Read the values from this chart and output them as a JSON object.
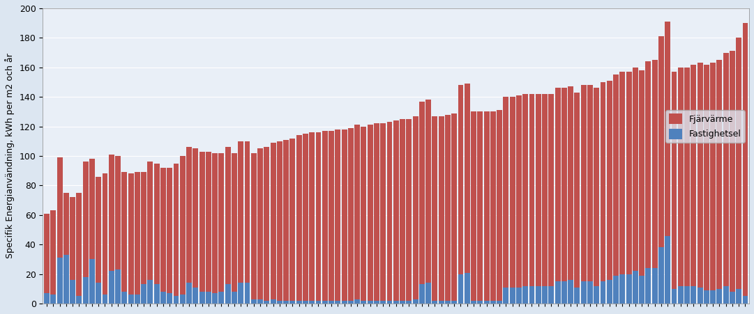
{
  "title": "",
  "ylabel": "Specifik Energianvändning, kWh per m2 och år",
  "legend_labels": [
    "Fjärvärme",
    "Fastighetsel"
  ],
  "bar_color_fjavarme": "#C0504D",
  "bar_color_fastighetsel": "#4F81BD",
  "background_color": "#DCE6F1",
  "plot_bg_color": "#E9EFF7",
  "ylim": [
    0,
    200
  ],
  "yticks": [
    0,
    20,
    40,
    60,
    80,
    100,
    120,
    140,
    160,
    180,
    200
  ],
  "fjavarme": [
    54,
    57,
    68,
    42,
    56,
    70,
    78,
    68,
    72,
    82,
    79,
    77,
    81,
    82,
    83,
    76,
    80,
    82,
    84,
    85,
    90,
    94,
    92,
    94,
    95,
    95,
    95,
    94,
    93,
    94,
    96,
    96,
    99,
    102,
    104,
    106,
    108,
    109,
    110,
    112,
    113,
    114,
    114,
    115,
    115,
    116,
    116,
    117,
    118,
    118,
    119,
    120,
    120,
    121,
    122,
    123,
    123,
    124,
    124,
    124,
    125,
    125,
    126,
    127,
    128,
    128,
    128,
    128,
    128,
    128,
    129,
    129,
    129,
    130,
    130,
    130,
    130,
    130,
    130,
    131,
    131,
    131,
    132,
    133,
    133,
    134,
    135,
    135,
    136,
    137,
    137,
    138,
    139,
    140,
    141,
    143,
    145,
    147,
    148,
    148,
    150,
    152,
    153,
    154,
    155,
    158,
    163,
    170,
    185
  ],
  "fastighetsel": [
    7,
    6,
    31,
    33,
    16,
    5,
    18,
    30,
    14,
    6,
    22,
    23,
    8,
    6,
    6,
    13,
    16,
    13,
    8,
    7,
    5,
    6,
    14,
    11,
    8,
    8,
    7,
    8,
    13,
    8,
    14,
    14,
    3,
    3,
    2,
    3,
    2,
    2,
    2,
    2,
    2,
    2,
    2,
    2,
    2,
    2,
    2,
    2,
    3,
    2,
    2,
    2,
    2,
    2,
    2,
    2,
    2,
    3,
    13,
    14,
    2,
    2,
    2,
    2,
    20,
    21,
    2,
    2,
    2,
    2,
    2,
    11,
    11,
    11,
    12,
    12,
    12,
    12,
    12,
    15,
    15,
    16,
    11,
    15,
    15,
    12,
    15,
    16,
    19,
    20,
    20,
    22,
    19,
    24,
    24,
    38,
    46,
    10,
    12,
    12,
    12,
    11,
    9,
    9,
    10,
    12,
    8,
    10,
    5
  ]
}
